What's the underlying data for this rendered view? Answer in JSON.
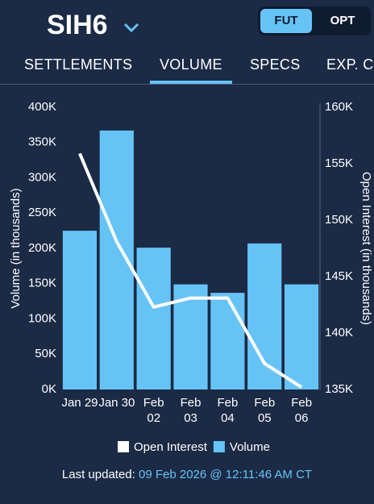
{
  "header": {
    "symbol": "SIH6",
    "toggle": [
      "FUT",
      "OPT"
    ],
    "selected_toggle": 0
  },
  "tabs": {
    "items": [
      "SETTLEMENTS",
      "VOLUME",
      "SPECS",
      "EXP. C"
    ],
    "selected": 1
  },
  "chart_data": {
    "type": "bar-line",
    "ylabel": "Volume (in thousands)",
    "y2label": "Open Interest (in thousands)",
    "categories": [
      "Jan 29",
      "Jan 30",
      "Feb 02",
      "Feb 03",
      "Feb 04",
      "Feb 05",
      "Feb 06"
    ],
    "series": [
      {
        "name": "Open Interest",
        "type": "line",
        "axis": "y2",
        "color": "#ffffff",
        "values": [
          155900,
          148100,
          142300,
          143100,
          143100,
          137300,
          135200
        ]
      },
      {
        "name": "Volume",
        "type": "bar",
        "color": "#66c3f6",
        "values": [
          225000,
          367000,
          201000,
          149000,
          137000,
          207000,
          149000
        ]
      }
    ],
    "ylim": [
      0,
      400000
    ],
    "yticks": [
      {
        "value": 0,
        "label": "0K"
      },
      {
        "value": 50000,
        "label": "50K"
      },
      {
        "value": 100000,
        "label": "100K"
      },
      {
        "value": 150000,
        "label": "150K"
      },
      {
        "value": 200000,
        "label": "200K"
      },
      {
        "value": 250000,
        "label": "250K"
      },
      {
        "value": 300000,
        "label": "300K"
      },
      {
        "value": 350000,
        "label": "350K"
      },
      {
        "value": 400000,
        "label": "400K"
      }
    ],
    "y2lim": [
      135000,
      160000
    ],
    "y2ticks": [
      {
        "value": 135000,
        "label": "135K"
      },
      {
        "value": 140000,
        "label": "140K"
      },
      {
        "value": 145000,
        "label": "145K"
      },
      {
        "value": 150000,
        "label": "150K"
      },
      {
        "value": 155000,
        "label": "155K"
      },
      {
        "value": 160000,
        "label": "160K"
      }
    ],
    "grid": false
  },
  "footer": {
    "label": "Last updated:",
    "timestamp": "09 Feb 2026 @ 12:11:46 AM CT"
  }
}
